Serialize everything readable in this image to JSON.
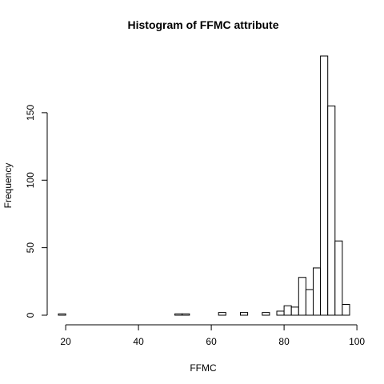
{
  "chart_data": {
    "type": "bar",
    "title": "Histogram of FFMC attribute",
    "xlabel": "FFMC",
    "ylabel": "Frequency",
    "xlim": [
      18,
      98
    ],
    "ylim": [
      0,
      192
    ],
    "x_ticks": [
      20,
      40,
      60,
      80,
      100
    ],
    "y_ticks": [
      0,
      50,
      100,
      150
    ],
    "bin_width": 2,
    "bins": [
      {
        "x0": 18,
        "x1": 20,
        "count": 1
      },
      {
        "x0": 20,
        "x1": 22,
        "count": 0
      },
      {
        "x0": 22,
        "x1": 24,
        "count": 0
      },
      {
        "x0": 24,
        "x1": 26,
        "count": 0
      },
      {
        "x0": 26,
        "x1": 28,
        "count": 0
      },
      {
        "x0": 28,
        "x1": 30,
        "count": 0
      },
      {
        "x0": 30,
        "x1": 32,
        "count": 0
      },
      {
        "x0": 32,
        "x1": 34,
        "count": 0
      },
      {
        "x0": 34,
        "x1": 36,
        "count": 0
      },
      {
        "x0": 36,
        "x1": 38,
        "count": 0
      },
      {
        "x0": 38,
        "x1": 40,
        "count": 0
      },
      {
        "x0": 40,
        "x1": 42,
        "count": 0
      },
      {
        "x0": 42,
        "x1": 44,
        "count": 0
      },
      {
        "x0": 44,
        "x1": 46,
        "count": 0
      },
      {
        "x0": 46,
        "x1": 48,
        "count": 0
      },
      {
        "x0": 48,
        "x1": 50,
        "count": 0
      },
      {
        "x0": 50,
        "x1": 52,
        "count": 1
      },
      {
        "x0": 52,
        "x1": 54,
        "count": 1
      },
      {
        "x0": 54,
        "x1": 56,
        "count": 0
      },
      {
        "x0": 56,
        "x1": 58,
        "count": 0
      },
      {
        "x0": 58,
        "x1": 60,
        "count": 0
      },
      {
        "x0": 60,
        "x1": 62,
        "count": 0
      },
      {
        "x0": 62,
        "x1": 64,
        "count": 2
      },
      {
        "x0": 64,
        "x1": 66,
        "count": 0
      },
      {
        "x0": 66,
        "x1": 68,
        "count": 0
      },
      {
        "x0": 68,
        "x1": 70,
        "count": 2
      },
      {
        "x0": 70,
        "x1": 72,
        "count": 0
      },
      {
        "x0": 72,
        "x1": 74,
        "count": 0
      },
      {
        "x0": 74,
        "x1": 76,
        "count": 2
      },
      {
        "x0": 76,
        "x1": 78,
        "count": 0
      },
      {
        "x0": 78,
        "x1": 80,
        "count": 3
      },
      {
        "x0": 80,
        "x1": 82,
        "count": 7
      },
      {
        "x0": 82,
        "x1": 84,
        "count": 6
      },
      {
        "x0": 84,
        "x1": 86,
        "count": 28
      },
      {
        "x0": 86,
        "x1": 88,
        "count": 19
      },
      {
        "x0": 88,
        "x1": 90,
        "count": 35
      },
      {
        "x0": 90,
        "x1": 92,
        "count": 192
      },
      {
        "x0": 92,
        "x1": 94,
        "count": 155
      },
      {
        "x0": 94,
        "x1": 96,
        "count": 55
      },
      {
        "x0": 96,
        "x1": 98,
        "count": 8
      }
    ]
  }
}
